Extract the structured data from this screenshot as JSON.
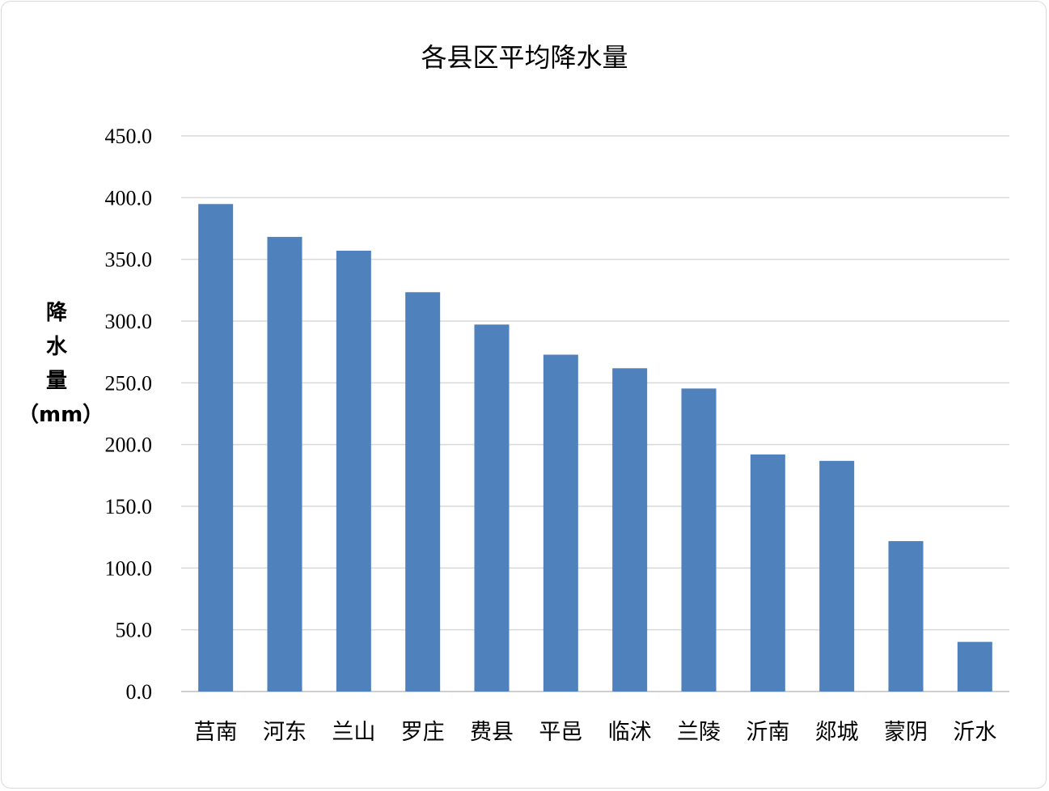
{
  "chart_data": {
    "type": "bar",
    "title": "各县区平均降水量",
    "ylabel_lines": [
      "降",
      "水",
      "量",
      "（mm）"
    ],
    "categories": [
      "莒南",
      "河东",
      "兰山",
      "罗庄",
      "费县",
      "平邑",
      "临沭",
      "兰陵",
      "沂南",
      "郯城",
      "蒙阴",
      "沂水"
    ],
    "values": [
      394.8,
      368.2,
      357.0,
      323.4,
      297.2,
      272.8,
      261.8,
      245.4,
      192.0,
      186.8,
      121.8,
      40.2
    ],
    "ylim": [
      0,
      450
    ],
    "yticks": [
      "0.0",
      "50.0",
      "100.0",
      "150.0",
      "200.0",
      "250.0",
      "300.0",
      "350.0",
      "400.0",
      "450.0"
    ],
    "grid": true,
    "legend": "none",
    "bar_color": "#4f81bd",
    "grid_color": "#d9d9d9"
  }
}
